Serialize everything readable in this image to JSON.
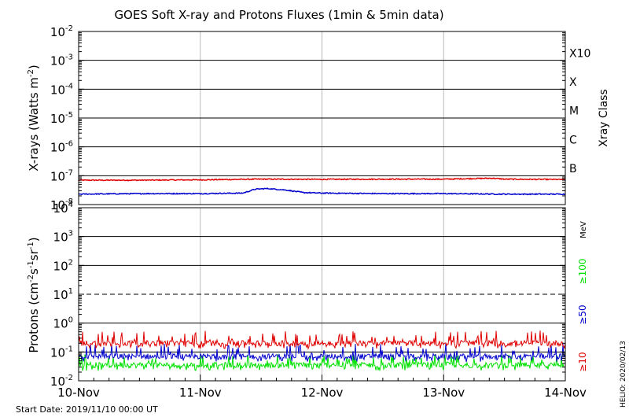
{
  "chart_data": [
    {
      "type": "line",
      "title": "GOES Soft X-ray and Protons Fluxes   (1min & 5min data)",
      "ylabel": "X-rays (Watts m-2)",
      "ylabel_base": "X-rays (Watts m",
      "ylabel_exp": "-2",
      "ylabel_end": ")",
      "yscale": "log",
      "ylim": [
        1e-08,
        0.01
      ],
      "y_ticks": [
        {
          "base": "10",
          "exp": "-2",
          "value": 0.01
        },
        {
          "base": "10",
          "exp": "-3",
          "value": 0.001
        },
        {
          "base": "10",
          "exp": "-4",
          "value": 0.0001
        },
        {
          "base": "10",
          "exp": "-5",
          "value": 1e-05
        },
        {
          "base": "10",
          "exp": "-6",
          "value": 1e-06
        },
        {
          "base": "10",
          "exp": "-7",
          "value": 1e-07
        },
        {
          "base": "10",
          "exp": "-8",
          "value": 1e-08
        }
      ],
      "right_axis_title": "Xray Class",
      "class_labels": [
        {
          "label": "X10",
          "value": 0.001
        },
        {
          "label": "X",
          "value": 0.0001
        },
        {
          "label": "M",
          "value": 1e-05
        },
        {
          "label": "C",
          "value": 1e-06
        },
        {
          "label": "B",
          "value": 1e-07
        }
      ],
      "grid": true,
      "series": [
        {
          "color": "#e00000",
          "x": [
            10.0,
            10.5,
            11.0,
            11.5,
            12.0,
            12.5,
            13.0,
            13.4,
            13.5,
            14.0
          ],
          "values": [
            7e-08,
            7e-08,
            7.2e-08,
            7.6e-08,
            7.5e-08,
            7.6e-08,
            7.6e-08,
            8.2e-08,
            7.6e-08,
            7.4e-08
          ]
        },
        {
          "color": "#0000cc",
          "x": [
            10.0,
            10.5,
            11.0,
            11.35,
            11.45,
            11.55,
            11.7,
            11.85,
            12.0,
            12.5,
            13.0,
            13.5,
            14.0
          ],
          "values": [
            2.3e-08,
            2.4e-08,
            2.4e-08,
            2.5e-08,
            3.4e-08,
            3.6e-08,
            3.2e-08,
            2.6e-08,
            2.5e-08,
            2.4e-08,
            2.4e-08,
            2.3e-08,
            2.3e-08
          ]
        }
      ]
    },
    {
      "type": "line",
      "ylabel": "Protons (cm-2s-1sr-1)",
      "ylabel_base": "Protons (cm",
      "ylabel_exp1": "-2",
      "ylabel_mid": "s",
      "ylabel_exp2": "-1",
      "ylabel_mid2": "sr",
      "ylabel_exp3": "-1",
      "ylabel_end": ")",
      "yscale": "log",
      "ylim": [
        0.01,
        10000
      ],
      "y_ticks": [
        {
          "base": "10",
          "exp": "4",
          "value": 10000
        },
        {
          "base": "10",
          "exp": "3",
          "value": 1000
        },
        {
          "base": "10",
          "exp": "2",
          "value": 100
        },
        {
          "base": "10",
          "exp": "1",
          "value": 10
        },
        {
          "base": "10",
          "exp": "0",
          "value": 1
        },
        {
          "base": "10",
          "exp": "-1",
          "value": 0.1
        },
        {
          "base": "10",
          "exp": "-2",
          "value": 0.01
        }
      ],
      "threshold_line": 10,
      "grid": true,
      "energy_unit": "MeV",
      "series": [
        {
          "name": "≥10",
          "color": "#e00000",
          "level": 0.2,
          "noise_high": 0.55,
          "noise_low": 0.13
        },
        {
          "name": "≥50",
          "color": "#0000cc",
          "level": 0.07,
          "noise_high": 0.2,
          "noise_low": 0.045
        },
        {
          "name": "≥100",
          "color": "#00e000",
          "level": 0.035,
          "noise_high": 0.085,
          "noise_low": 0.022
        }
      ]
    }
  ],
  "x_axis": {
    "ticks": [
      "10-Nov",
      "11-Nov",
      "12-Nov",
      "13-Nov",
      "14-Nov"
    ],
    "tick_values": [
      10,
      11,
      12,
      13,
      14
    ]
  },
  "footer": {
    "start_date": "Start Date: 2019/11/10 00:00 UT",
    "credit": "HELIO: 2020/02/13"
  }
}
